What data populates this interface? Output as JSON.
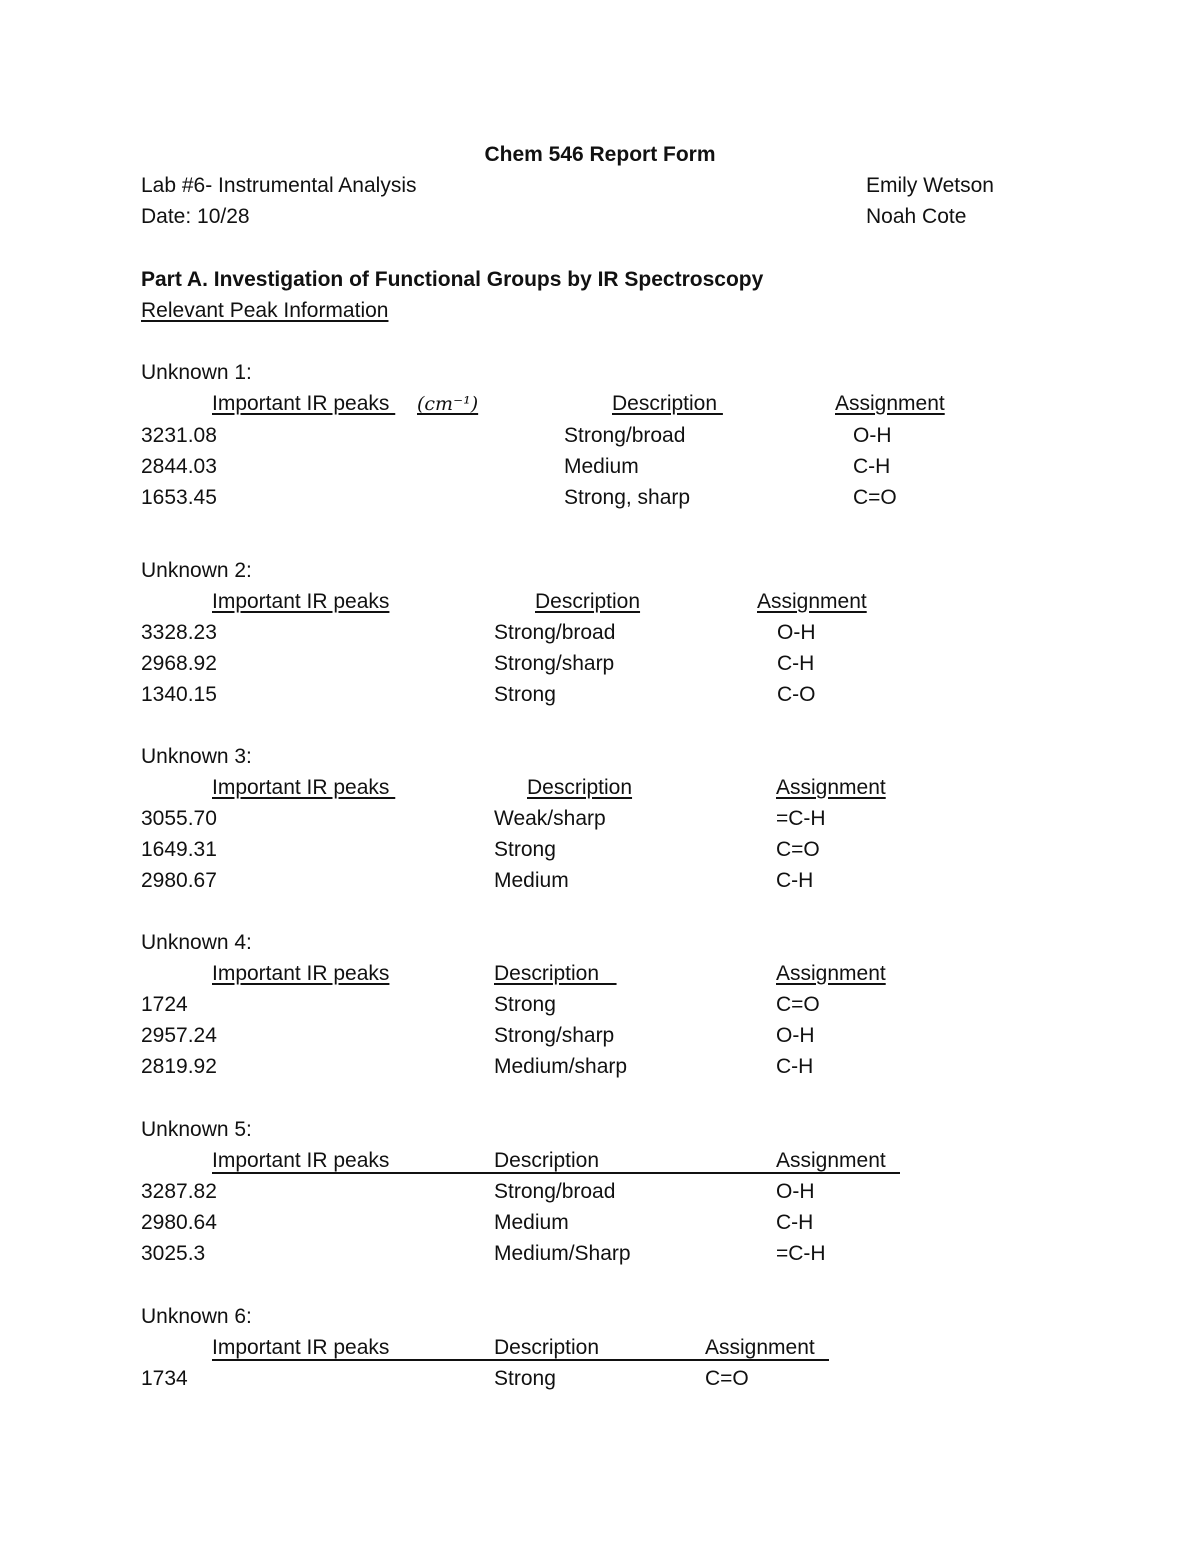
{
  "header": {
    "title": "Chem 546 Report Form",
    "lab": "Lab #6- Instrumental Analysis",
    "date": "Date: 10/28",
    "author_1": "Emily Wetson",
    "author_2": "Noah Cote"
  },
  "part_a": {
    "title": "Part A. Investigation of Functional Groups by IR Spectroscopy",
    "subtitle": "Relevant Peak Information"
  },
  "unknowns": [
    {
      "label": "Unknown 1:",
      "headers": [
        "Important IR peaks ",
        "Description ",
        "Assignment"
      ],
      "unit": "(cm⁻¹)",
      "rows": [
        [
          "3231.08",
          "Strong/broad",
          "O-H"
        ],
        [
          "2844.03",
          "Medium",
          "C-H"
        ],
        [
          "1653.45",
          "Strong, sharp",
          "C=O"
        ]
      ]
    },
    {
      "label": "Unknown 2:",
      "headers": [
        "Important IR peaks",
        "Description",
        "Assignment"
      ],
      "rows": [
        [
          "3328.23",
          "Strong/broad",
          "O-H"
        ],
        [
          "2968.92",
          "Strong/sharp",
          "C-H"
        ],
        [
          "1340.15",
          "Strong",
          "C-O"
        ]
      ]
    },
    {
      "label": "Unknown 3:",
      "headers": [
        "Important IR peaks ",
        "Description",
        "Assignment"
      ],
      "rows": [
        [
          "3055.70",
          "Weak/sharp",
          "=C-H"
        ],
        [
          "1649.31",
          "Strong",
          "C=O"
        ],
        [
          "2980.67",
          "Medium",
          "C-H"
        ]
      ]
    },
    {
      "label": "Unknown 4:",
      "headers": [
        "Important IR peaks",
        "Description   ",
        "Assignment"
      ],
      "rows": [
        [
          "1724",
          "Strong",
          "C=O"
        ],
        [
          "2957.24",
          "Strong/sharp",
          "O-H"
        ],
        [
          "2819.92",
          "Medium/sharp",
          "C-H"
        ]
      ]
    },
    {
      "label": "Unknown 5:",
      "headers": [
        "Important IR peaks",
        "Description",
        "Assignment"
      ],
      "rows": [
        [
          "3287.82",
          "Strong/broad",
          "O-H"
        ],
        [
          "2980.64",
          "Medium",
          "C-H"
        ],
        [
          "3025.3",
          "Medium/Sharp",
          "=C-H"
        ]
      ]
    },
    {
      "label": "Unknown 6:",
      "headers": [
        "Important IR peaks",
        "Description",
        "Assignment"
      ],
      "rows": [
        [
          "1734",
          "Strong",
          "C=O"
        ]
      ]
    }
  ]
}
